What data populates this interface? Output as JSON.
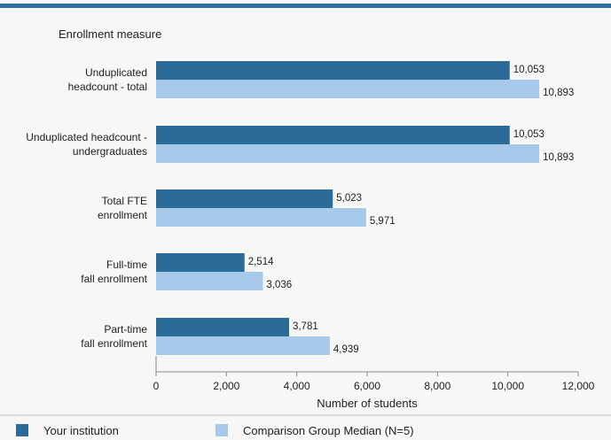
{
  "chart_data": {
    "type": "bar",
    "orientation": "horizontal",
    "title": "Enrollment measure",
    "xlabel": "Number of students",
    "xlim": [
      0,
      12000
    ],
    "xticks": [
      "0",
      "2,000",
      "4,000",
      "6,000",
      "8,000",
      "10,000",
      "12,000"
    ],
    "categories": [
      [
        "Unduplicated",
        "headcount - total"
      ],
      [
        "Unduplicated headcount -",
        "undergraduates"
      ],
      [
        "Total FTE",
        "enrollment"
      ],
      [
        "Full-time",
        "fall enrollment"
      ],
      [
        "Part-time",
        "fall enrollment"
      ]
    ],
    "series": [
      {
        "name": "Your institution",
        "color": "#2a6c97",
        "values": [
          10053,
          10053,
          5023,
          2514,
          3781
        ],
        "labels": [
          "10,053",
          "10,053",
          "5,023",
          "2,514",
          "3,781"
        ]
      },
      {
        "name": "Comparison Group Median (N=5)",
        "color": "#a7c9ea",
        "values": [
          10893,
          10893,
          5971,
          3036,
          4939
        ],
        "labels": [
          "10,893",
          "10,893",
          "5,971",
          "3,036",
          "4,939"
        ]
      }
    ],
    "grid": false,
    "legend": "bottom"
  }
}
